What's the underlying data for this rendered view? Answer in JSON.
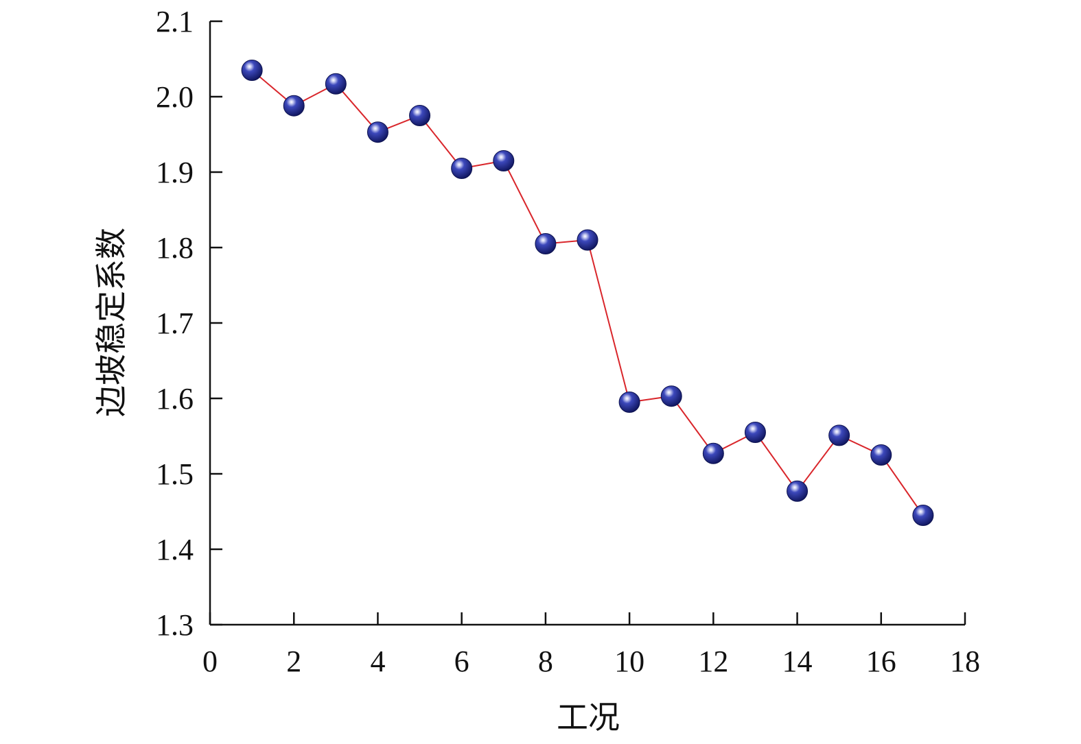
{
  "chart_data": {
    "type": "line",
    "title": "",
    "xlabel": "工况",
    "ylabel": "边坡稳定系数",
    "xlim": [
      0,
      18
    ],
    "ylim": [
      1.3,
      2.1
    ],
    "x_ticks": [
      0,
      2,
      4,
      6,
      8,
      10,
      12,
      14,
      16,
      18
    ],
    "y_ticks": [
      1.3,
      1.4,
      1.5,
      1.6,
      1.7,
      1.8,
      1.9,
      2.0,
      2.1
    ],
    "x_tick_labels": [
      "0",
      "2",
      "4",
      "6",
      "8",
      "10",
      "12",
      "14",
      "16",
      "18"
    ],
    "y_tick_labels": [
      "1.3",
      "1.4",
      "1.5",
      "1.6",
      "1.7",
      "1.8",
      "1.9",
      "2.0",
      "2.1"
    ],
    "grid": false,
    "legend": "none",
    "line_color": "#d9262b",
    "marker_color": "#2e3aa3",
    "series": [
      {
        "x": [
          1,
          2,
          3,
          4,
          5,
          6,
          7,
          8,
          9,
          10,
          11,
          12,
          13,
          14,
          15,
          16,
          17
        ],
        "y": [
          2.035,
          1.988,
          2.017,
          1.953,
          1.975,
          1.905,
          1.915,
          1.805,
          1.81,
          1.595,
          1.603,
          1.527,
          1.555,
          1.477,
          1.551,
          1.525,
          1.445
        ]
      }
    ]
  }
}
